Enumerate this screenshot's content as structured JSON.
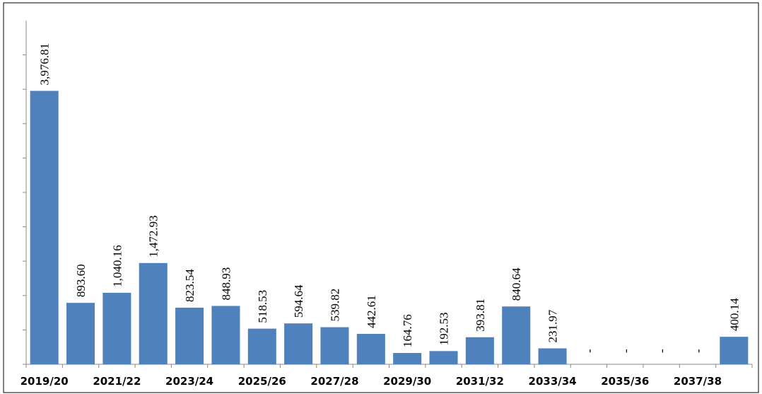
{
  "chart_data": {
    "type": "bar",
    "categories": [
      "2019/20",
      null,
      "2021/22",
      null,
      "2023/24",
      null,
      "2025/26",
      null,
      "2027/28",
      null,
      "2029/30",
      null,
      "2031/32",
      null,
      "2033/34",
      null,
      "2035/36",
      null,
      "2037/38",
      null
    ],
    "values": [
      3976.81,
      893.6,
      1040.16,
      1472.93,
      823.54,
      848.93,
      518.53,
      594.64,
      539.82,
      442.61,
      164.76,
      192.53,
      393.81,
      840.64,
      231.97,
      null,
      null,
      null,
      null,
      400.14
    ],
    "value_labels": [
      "3,976.81",
      "893.60",
      "1,040.16",
      "1,472.93",
      "823.54",
      "848.93",
      "518.53",
      "594.64",
      "539.82",
      "442.61",
      "164.76",
      "192.53",
      "393.81",
      "840.64",
      "231.97",
      "-",
      "-",
      "-",
      "-",
      "400.14"
    ],
    "color": "#4f81bd",
    "ylim": [
      0,
      5000
    ],
    "yticks": [
      0,
      500,
      1000,
      1500,
      2000,
      2500,
      3000,
      3500,
      4000,
      4500
    ]
  }
}
